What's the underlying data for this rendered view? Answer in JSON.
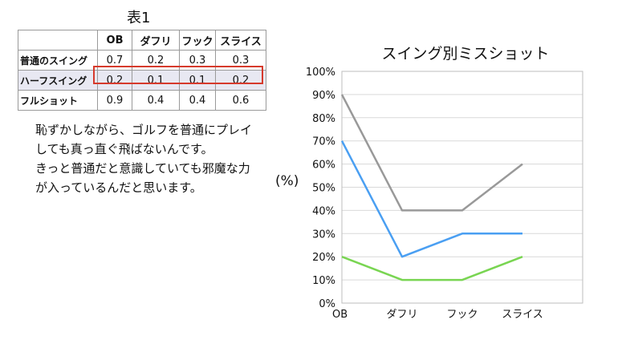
{
  "table": {
    "title": "表1",
    "columns": [
      "OB",
      "ダフリ",
      "フック",
      "スライス"
    ],
    "rows": [
      {
        "label": "普通のスイング",
        "values": [
          "0.7",
          "0.2",
          "0.3",
          "0.3"
        ]
      },
      {
        "label": "ハーフスイング",
        "values": [
          "0.2",
          "0.1",
          "0.1",
          "0.2"
        ]
      },
      {
        "label": "フルショット",
        "values": [
          "0.9",
          "0.4",
          "0.4",
          "0.6"
        ]
      }
    ]
  },
  "note": {
    "line1": "恥ずかしながら、ゴルフを普通にプレイしても真っ直ぐ飛ばないんです。",
    "line2": "きっと普通だと意識していても邪魔な力が入っているんだと思います。"
  },
  "chart_data": {
    "type": "line",
    "title": "スイング別ミスショット",
    "ylabel": "(%)",
    "categories": [
      "OB",
      "ダフリ",
      "フック",
      "スライス"
    ],
    "ylim": [
      0,
      100
    ],
    "yticks": [
      "0%",
      "10%",
      "20%",
      "30%",
      "40%",
      "50%",
      "60%",
      "70%",
      "80%",
      "90%",
      "100%"
    ],
    "grid": true,
    "series": [
      {
        "values": [
          70,
          20,
          30,
          30
        ],
        "color": "#4a9ff2"
      },
      {
        "values": [
          20,
          10,
          10,
          20
        ],
        "color": "#79d552"
      },
      {
        "values": [
          90,
          40,
          40,
          60
        ],
        "color": "#999999"
      }
    ]
  }
}
